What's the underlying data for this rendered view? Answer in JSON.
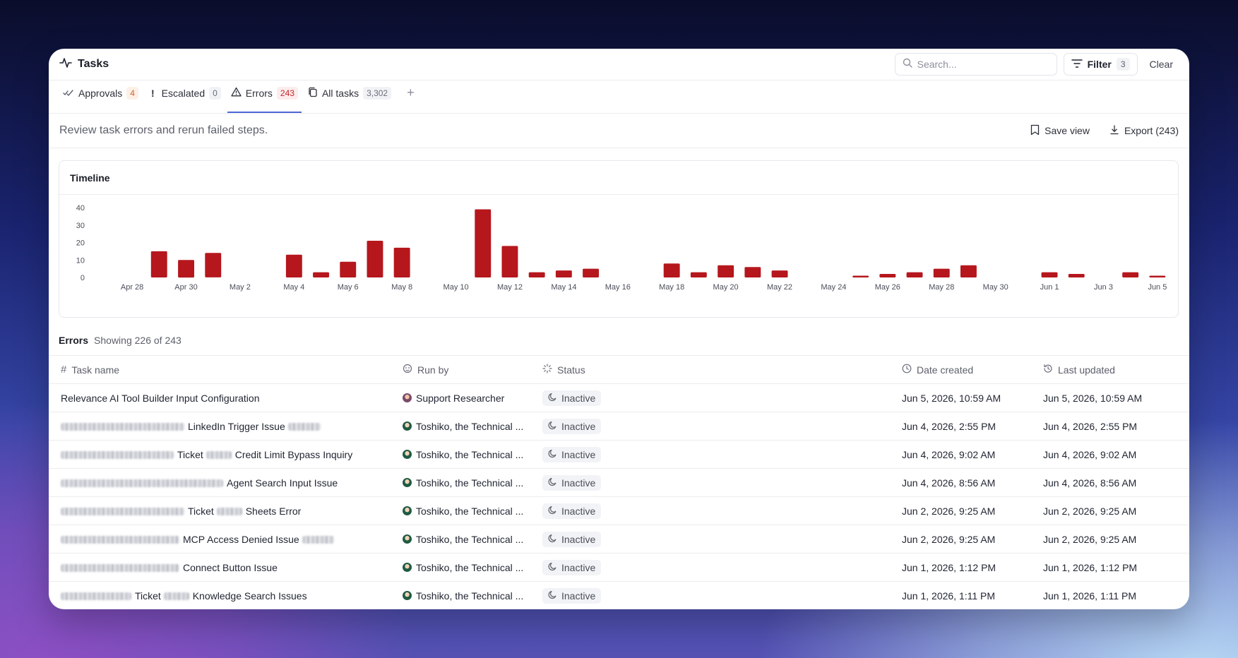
{
  "header": {
    "title": "Tasks",
    "search_placeholder": "Search...",
    "filter_label": "Filter",
    "filter_count": "3",
    "clear_label": "Clear"
  },
  "tabs": [
    {
      "label": "Approvals",
      "count": "4",
      "icon": "approvals-icon"
    },
    {
      "label": "Escalated",
      "count": "0",
      "icon": "exclamation-icon"
    },
    {
      "label": "Errors",
      "count": "243",
      "icon": "warning-triangle-icon",
      "active": true
    },
    {
      "label": "All tasks",
      "count": "3,302",
      "icon": "copy-icon"
    }
  ],
  "subbar": {
    "description": "Review task errors and rerun failed steps.",
    "save_view": "Save view",
    "export": "Export (243)"
  },
  "timeline_title": "Timeline",
  "chart_data": {
    "type": "bar",
    "ylim": [
      0,
      40
    ],
    "yticks": [
      "0",
      "10",
      "20",
      "30",
      "40"
    ],
    "series_color": "#b5171d",
    "x_tick_labels": [
      "Apr 28",
      "Apr 30",
      "May 2",
      "May 4",
      "May 6",
      "May 8",
      "May 10",
      "May 12",
      "May 14",
      "May 16",
      "May 18",
      "May 20",
      "May 22",
      "May 24",
      "May 26",
      "May 28",
      "May 30",
      "Jun 1",
      "Jun 3",
      "Jun 5"
    ],
    "categories": [
      "Apr 28",
      "Apr 29",
      "Apr 30",
      "May 1",
      "May 2",
      "May 3",
      "May 4",
      "May 5",
      "May 6",
      "May 7",
      "May 8",
      "May 9",
      "May 10",
      "May 11",
      "May 12",
      "May 13",
      "May 14",
      "May 15",
      "May 16",
      "May 17",
      "May 18",
      "May 19",
      "May 20",
      "May 21",
      "May 22",
      "May 23",
      "May 24",
      "May 25",
      "May 26",
      "May 27",
      "May 28",
      "May 29",
      "May 30",
      "May 31",
      "Jun 1",
      "Jun 2",
      "Jun 3",
      "Jun 4",
      "Jun 5"
    ],
    "values": [
      0,
      15,
      10,
      14,
      0,
      0,
      13,
      3,
      9,
      21,
      17,
      0,
      0,
      39,
      18,
      3,
      4,
      5,
      0,
      0,
      8,
      3,
      7,
      6,
      4,
      0,
      0,
      1,
      2,
      3,
      5,
      7,
      0,
      0,
      3,
      2,
      0,
      3,
      1
    ]
  },
  "errors_section": {
    "title": "Errors",
    "subtitle": "Showing 226 of 243"
  },
  "columns": {
    "task_name": "Task name",
    "run_by": "Run by",
    "status": "Status",
    "date_created": "Date created",
    "last_updated": "Last updated"
  },
  "rows": [
    {
      "redact": false,
      "name": "Relevance AI Tool Builder Input Configuration",
      "run_by": "Support Researcher",
      "status": "Inactive",
      "created": "Jun 5, 2026, 10:59 AM",
      "updated": "Jun 5, 2026, 10:59 AM"
    },
    {
      "redact": true,
      "name": "LinkedIn Trigger Issue",
      "run_by": "Toshiko, the Technical ...",
      "status": "Inactive",
      "created": "Jun 4, 2026, 2:55 PM",
      "updated": "Jun 4, 2026, 2:55 PM"
    },
    {
      "redact": true,
      "name": "Credit Limit Bypass Inquiry",
      "prefix": "Ticket",
      "run_by": "Toshiko, the Technical ...",
      "status": "Inactive",
      "created": "Jun 4, 2026, 9:02 AM",
      "updated": "Jun 4, 2026, 9:02 AM"
    },
    {
      "redact": true,
      "name": "Agent Search Input Issue",
      "run_by": "Toshiko, the Technical ...",
      "status": "Inactive",
      "created": "Jun 4, 2026, 8:56 AM",
      "updated": "Jun 4, 2026, 8:56 AM"
    },
    {
      "redact": true,
      "name": "Sheets Error",
      "prefix": "Ticket",
      "run_by": "Toshiko, the Technical ...",
      "status": "Inactive",
      "created": "Jun 2, 2026, 9:25 AM",
      "updated": "Jun 2, 2026, 9:25 AM"
    },
    {
      "redact": true,
      "name": "MCP Access Denied Issue",
      "run_by": "Toshiko, the Technical ...",
      "status": "Inactive",
      "created": "Jun 2, 2026, 9:25 AM",
      "updated": "Jun 2, 2026, 9:25 AM"
    },
    {
      "redact": true,
      "name": "Connect Button Issue",
      "run_by": "Toshiko, the Technical ...",
      "status": "Inactive",
      "created": "Jun 1, 2026, 1:12 PM",
      "updated": "Jun 1, 2026, 1:12 PM"
    },
    {
      "redact": true,
      "name": "Knowledge Search Issues",
      "prefix": "Ticket",
      "run_by": "Toshiko, the Technical ...",
      "status": "Inactive",
      "created": "Jun 1, 2026, 1:11 PM",
      "updated": "Jun 1, 2026, 1:11 PM"
    }
  ]
}
